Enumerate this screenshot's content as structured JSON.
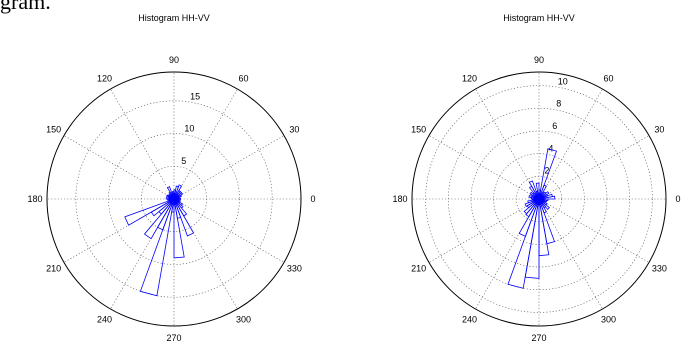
{
  "page": {
    "header_fragment": "gram."
  },
  "style": {
    "bar_color": "#0000ff",
    "grid_color": "#555555",
    "frame_color": "#000000"
  },
  "chart_data": [
    {
      "type": "polar-histogram",
      "title": "Histogram HH-VV",
      "angle_ticks": [
        "0",
        "30",
        "60",
        "90",
        "120",
        "150",
        "180",
        "210",
        "240",
        "270",
        "300",
        "330"
      ],
      "angle_tick_values_deg": [
        0,
        30,
        60,
        90,
        120,
        150,
        180,
        210,
        240,
        270,
        300,
        330
      ],
      "r_max": 19.4,
      "r_ticks": [
        "5",
        "10",
        "15"
      ],
      "r_tick_values": [
        5,
        10,
        15
      ],
      "bin_width_deg": 10,
      "bins": [
        {
          "center": 5,
          "value": 1.0
        },
        {
          "center": 15,
          "value": 0.8
        },
        {
          "center": 25,
          "value": 1.2
        },
        {
          "center": 35,
          "value": 1.5
        },
        {
          "center": 45,
          "value": 1.5
        },
        {
          "center": 55,
          "value": 1.5
        },
        {
          "center": 65,
          "value": 2.3
        },
        {
          "center": 75,
          "value": 2.0
        },
        {
          "center": 85,
          "value": 1.4
        },
        {
          "center": 95,
          "value": 1.2
        },
        {
          "center": 105,
          "value": 1.0
        },
        {
          "center": 115,
          "value": 2.0
        },
        {
          "center": 125,
          "value": 1.2
        },
        {
          "center": 135,
          "value": 1.0
        },
        {
          "center": 145,
          "value": 1.0
        },
        {
          "center": 155,
          "value": 1.2
        },
        {
          "center": 165,
          "value": 0.8
        },
        {
          "center": 175,
          "value": 1.2
        },
        {
          "center": 185,
          "value": 1.0
        },
        {
          "center": 195,
          "value": 0.8
        },
        {
          "center": 205,
          "value": 8.0
        },
        {
          "center": 215,
          "value": 4.0
        },
        {
          "center": 225,
          "value": 3.0
        },
        {
          "center": 235,
          "value": 7.0
        },
        {
          "center": 245,
          "value": 5.0
        },
        {
          "center": 255,
          "value": 15.0
        },
        {
          "center": 265,
          "value": 2.0
        },
        {
          "center": 275,
          "value": 9.0
        },
        {
          "center": 285,
          "value": 3.0
        },
        {
          "center": 295,
          "value": 6.0
        },
        {
          "center": 305,
          "value": 3.0
        },
        {
          "center": 315,
          "value": 1.8
        },
        {
          "center": 325,
          "value": 1.5
        },
        {
          "center": 335,
          "value": 1.0
        },
        {
          "center": 345,
          "value": 0.8
        },
        {
          "center": 355,
          "value": 1.0
        }
      ]
    },
    {
      "type": "polar-histogram",
      "title": "Histogram HH-VV",
      "angle_ticks": [
        "0",
        "30",
        "60",
        "90",
        "120",
        "150",
        "180",
        "210",
        "240",
        "270",
        "300",
        "330"
      ],
      "angle_tick_values_deg": [
        0,
        30,
        60,
        90,
        120,
        150,
        180,
        210,
        240,
        270,
        300,
        330
      ],
      "r_max": 11.2,
      "r_ticks": [
        "2",
        "4",
        "6",
        "8",
        "10"
      ],
      "r_tick_values": [
        2,
        4,
        6,
        8,
        10
      ],
      "bin_width_deg": 10,
      "bins": [
        {
          "center": 5,
          "value": 1.4
        },
        {
          "center": 15,
          "value": 1.2
        },
        {
          "center": 25,
          "value": 0.8
        },
        {
          "center": 35,
          "value": 1.0
        },
        {
          "center": 45,
          "value": 0.8
        },
        {
          "center": 55,
          "value": 0.7
        },
        {
          "center": 65,
          "value": 1.3
        },
        {
          "center": 75,
          "value": 4.5
        },
        {
          "center": 85,
          "value": 0.8
        },
        {
          "center": 95,
          "value": 1.4
        },
        {
          "center": 105,
          "value": 0.7
        },
        {
          "center": 115,
          "value": 1.7
        },
        {
          "center": 125,
          "value": 1.3
        },
        {
          "center": 135,
          "value": 0.7
        },
        {
          "center": 145,
          "value": 0.9
        },
        {
          "center": 155,
          "value": 0.7
        },
        {
          "center": 165,
          "value": 0.9
        },
        {
          "center": 175,
          "value": 0.7
        },
        {
          "center": 185,
          "value": 0.6
        },
        {
          "center": 195,
          "value": 1.0
        },
        {
          "center": 205,
          "value": 1.3
        },
        {
          "center": 215,
          "value": 1.2
        },
        {
          "center": 225,
          "value": 1.7
        },
        {
          "center": 235,
          "value": 1.8
        },
        {
          "center": 245,
          "value": 3.5
        },
        {
          "center": 255,
          "value": 8.0
        },
        {
          "center": 265,
          "value": 7.0
        },
        {
          "center": 275,
          "value": 5.0
        },
        {
          "center": 285,
          "value": 4.0
        },
        {
          "center": 295,
          "value": 1.3
        },
        {
          "center": 305,
          "value": 0.9
        },
        {
          "center": 315,
          "value": 1.2
        },
        {
          "center": 325,
          "value": 0.8
        },
        {
          "center": 335,
          "value": 0.6
        },
        {
          "center": 345,
          "value": 0.7
        },
        {
          "center": 355,
          "value": 0.8
        }
      ]
    }
  ]
}
